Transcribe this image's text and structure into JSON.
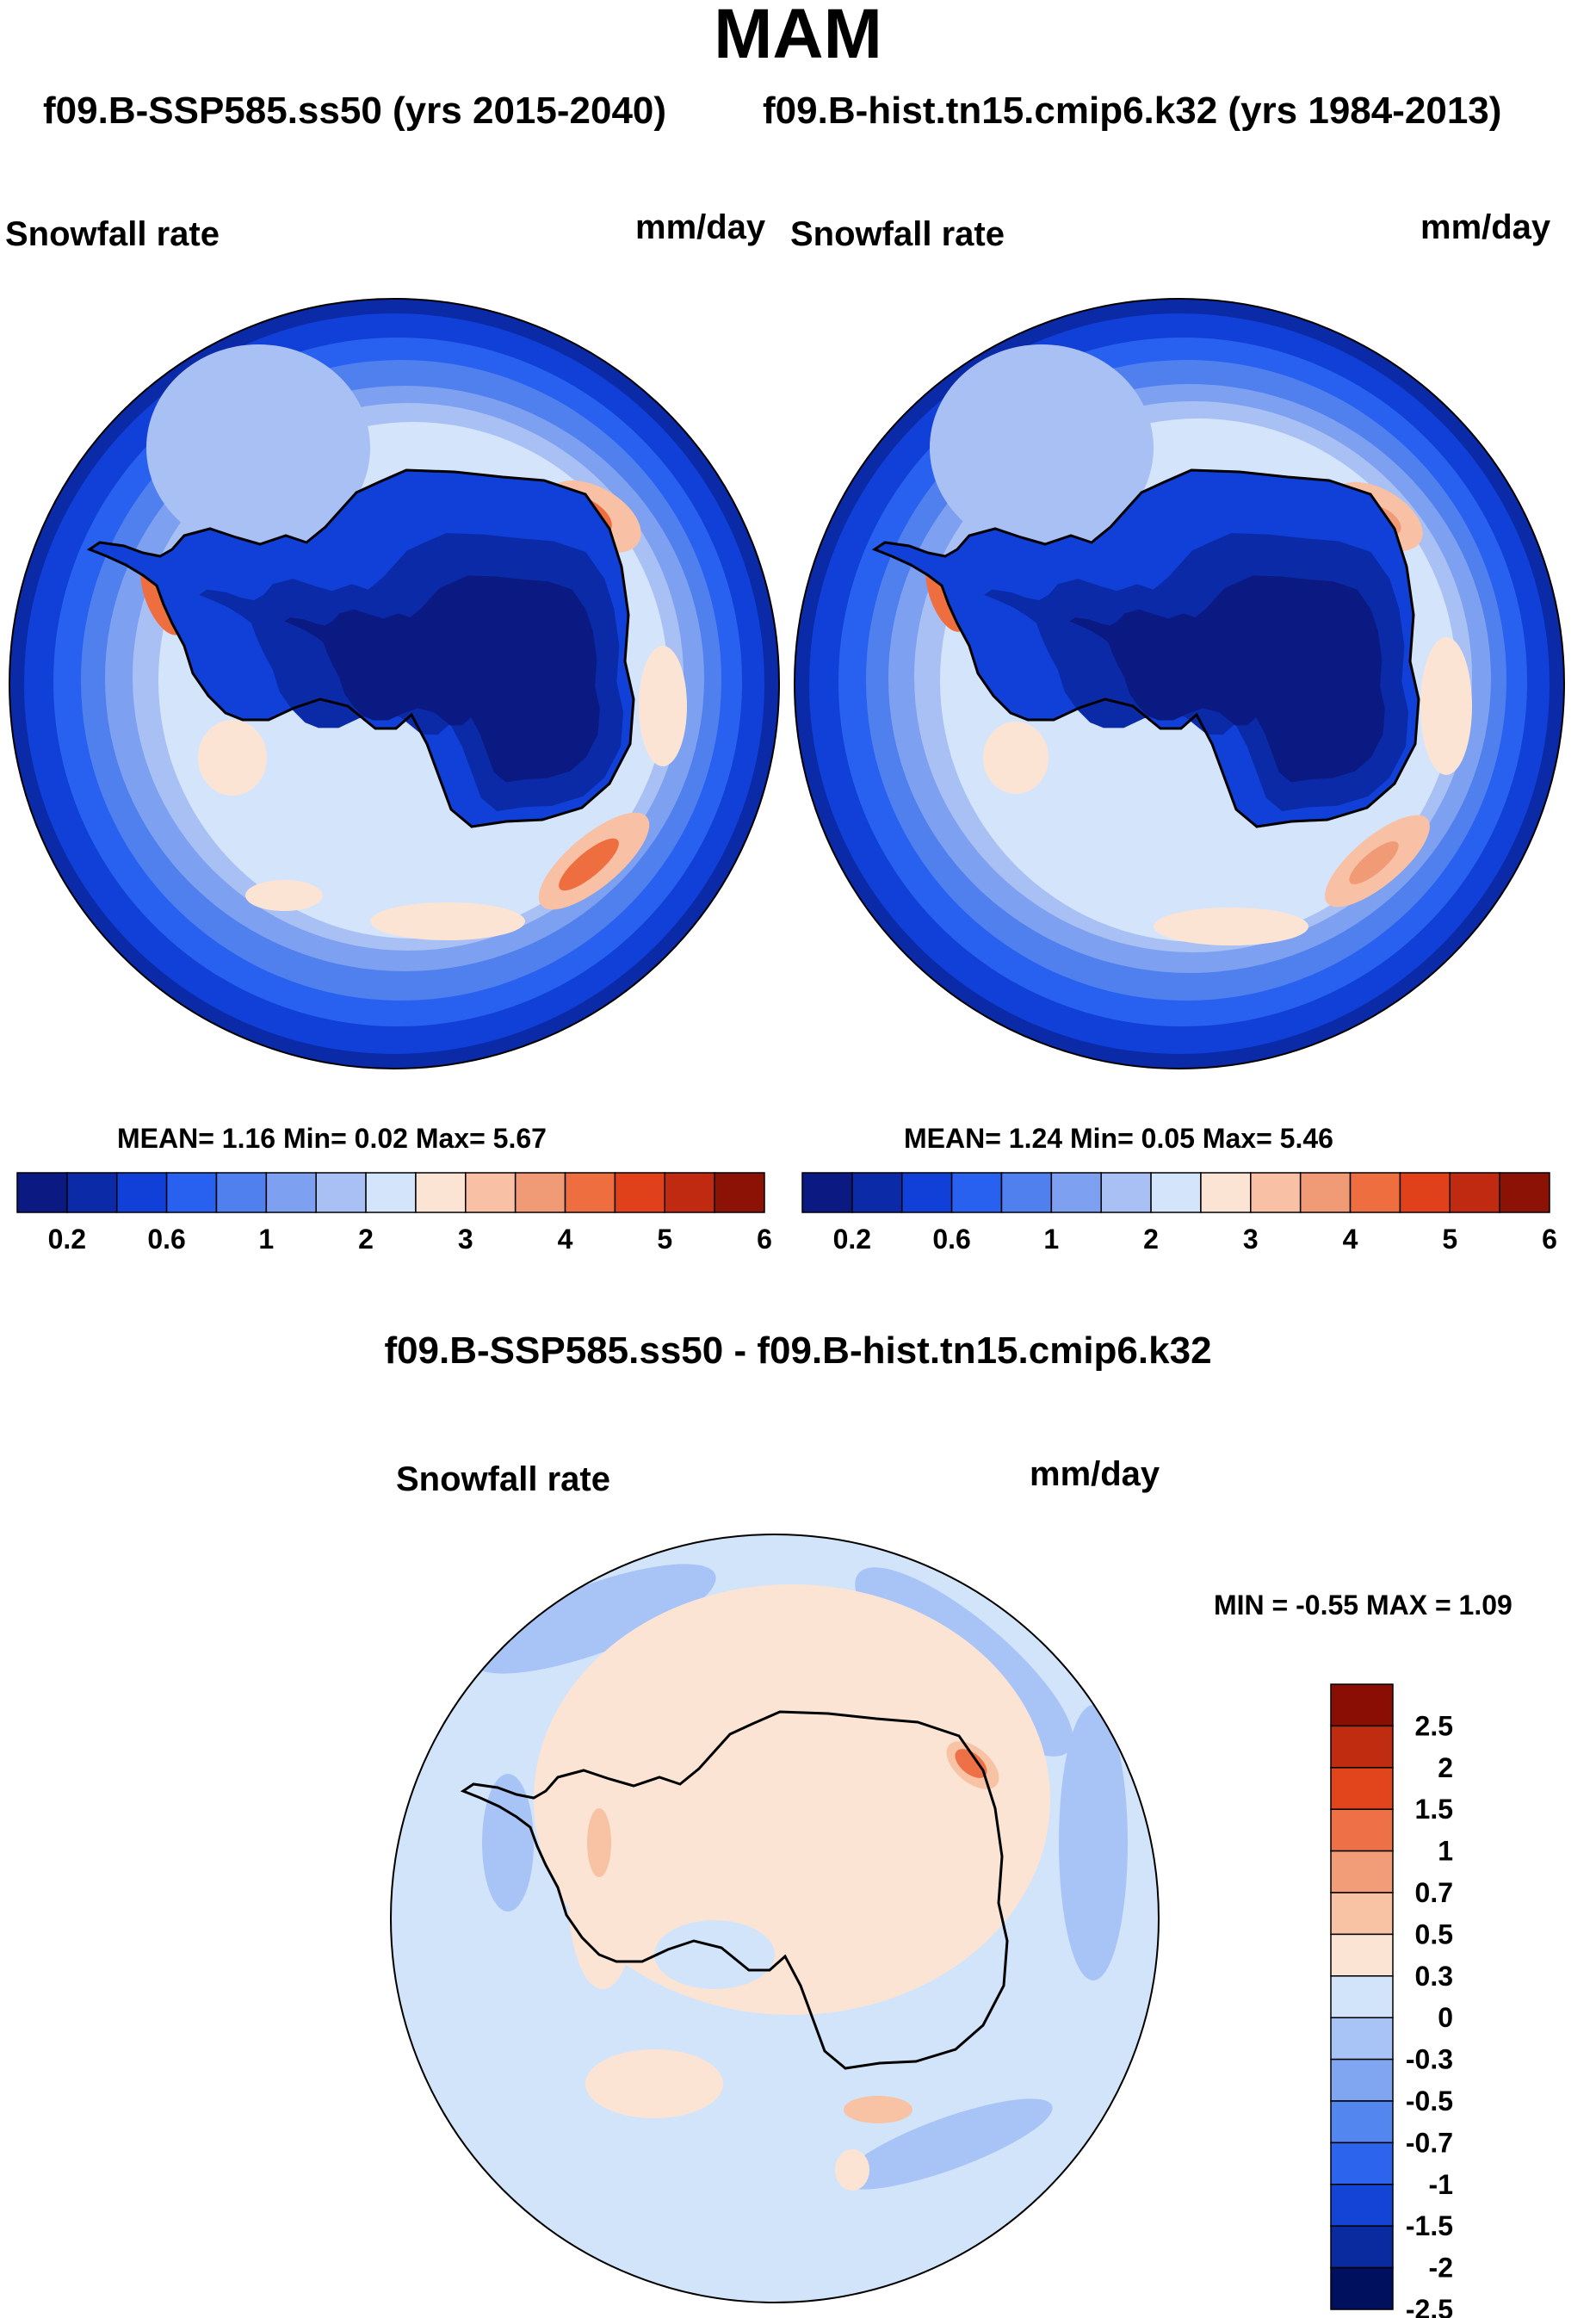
{
  "header": {
    "season": "MAM",
    "left_run": "f09.B-SSP585.ss50 (yrs 2015-2040)",
    "right_run": "f09.B-hist.tn15.cmip6.k32 (yrs 1984-2013)",
    "diff_title": "f09.B-SSP585.ss50 - f09.B-hist.tn15.cmip6.k32"
  },
  "colors": {
    "abs_scale": [
      "#0a1a82",
      "#0a2aa8",
      "#1040d8",
      "#2860f0",
      "#5080ee",
      "#7ea0f0",
      "#a8c0f4",
      "#d4e4fa",
      "#fce4d4",
      "#f8c0a4",
      "#f09a76",
      "#ef6e40",
      "#e0401a",
      "#c02a10",
      "#8c1206"
    ],
    "diff_scale": [
      "#00105e",
      "#0a2aa0",
      "#1444d6",
      "#2c64ee",
      "#5486f0",
      "#80a6f2",
      "#a8c4f6",
      "#d2e4fa",
      "#fce4d4",
      "#f8c2a4",
      "#f29c78",
      "#ee7046",
      "#e2441c",
      "#c02c10",
      "#8a0e04"
    ],
    "coast": "#000000"
  },
  "chart_data": [
    {
      "type": "heatmap",
      "title": "Snowfall rate",
      "units": "mm/day",
      "projection": "south polar stereographic",
      "stats_text": "MEAN=   1.16  Min=   0.02  Max=   5.67",
      "stats": {
        "mean": 1.16,
        "min": 0.02,
        "max": 5.67
      },
      "colorbar_ticks": [
        "0.2",
        "0.6",
        "1",
        "2",
        "3",
        "4",
        "5",
        "6"
      ]
    },
    {
      "type": "heatmap",
      "title": "Snowfall rate",
      "units": "mm/day",
      "projection": "south polar stereographic",
      "stats_text": "MEAN=   1.24  Min=   0.05  Max=   5.46",
      "stats": {
        "mean": 1.24,
        "min": 0.05,
        "max": 5.46
      },
      "colorbar_ticks": [
        "0.2",
        "0.6",
        "1",
        "2",
        "3",
        "4",
        "5",
        "6"
      ]
    },
    {
      "type": "heatmap",
      "title": "Snowfall rate",
      "units": "mm/day",
      "projection": "south polar stereographic",
      "stats_text": "MIN =  -0.55 MAX =   1.09",
      "stats": {
        "min": -0.55,
        "max": 1.09
      },
      "colorbar_ticks": [
        "2.5",
        "2",
        "1.5",
        "1",
        "0.7",
        "0.5",
        "0.3",
        "0",
        "-0.3",
        "-0.5",
        "-0.7",
        "-1",
        "-1.5",
        "-2",
        "-2.5"
      ]
    }
  ]
}
